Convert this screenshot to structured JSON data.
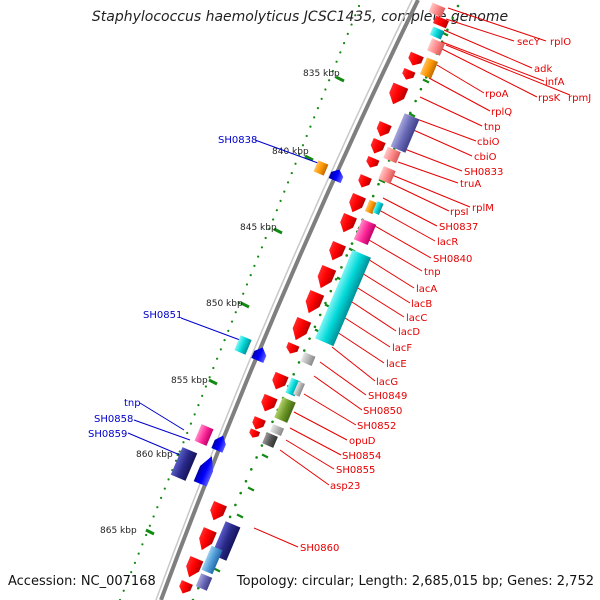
{
  "title": "Staphylococcus haemolyticus JCSC1435, complete genome",
  "footer": {
    "accession": "Accession: NC_007168",
    "summary": "Topology: circular; Length: 2,685,015 bp; Genes: 2,752"
  },
  "scale_labels": [
    "835 kbp",
    "840 kbp",
    "845 kbp",
    "850 kbp",
    "855 kbp",
    "860 kbp",
    "865 kbp"
  ],
  "colors": {
    "backbone": "#7f7f7f",
    "cds_forward": "#ff0000",
    "cds_reverse": "#ff0000",
    "right_label": "#e60000",
    "left_label": "#0000cc",
    "tick_green": "#138a13"
  },
  "left_labels": [
    "SH0838",
    "SH0851",
    "tnp",
    "SH0858",
    "SH0859"
  ],
  "right_labels": [
    "rplO",
    "secY",
    "adk",
    "infA",
    "rpsK",
    "rpmJ",
    "rpoA",
    "rplQ",
    "tnp",
    "cbiO",
    "cbiO",
    "SH0833",
    "truA",
    "rplM",
    "rpsI",
    "SH0837",
    "lacR",
    "SH0840",
    "tnp",
    "lacA",
    "lacB",
    "lacC",
    "lacD",
    "lacF",
    "lacE",
    "lacG",
    "SH0849",
    "SH0850",
    "SH0852",
    "opuD",
    "SH0854",
    "SH0855",
    "asp23",
    "SH0860"
  ]
}
